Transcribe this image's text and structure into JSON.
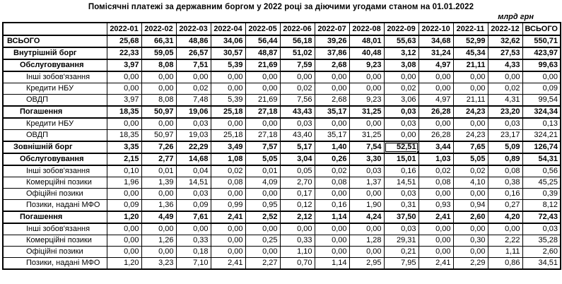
{
  "title": "Помісячні платежі за державним боргом у 2022 році за діючими угодами станом на 01.01.2022",
  "unit_label": "млрд грн",
  "colors": {
    "border": "#000000",
    "text": "#000000",
    "background": "#ffffff"
  },
  "selection": {
    "row_index": 9,
    "value_index": 8,
    "value": "52,51"
  },
  "table": {
    "columns": [
      "2022-01",
      "2022-02",
      "2022-03",
      "2022-04",
      "2022-05",
      "2022-06",
      "2022-07",
      "2022-08",
      "2022-09",
      "2022-10",
      "2022-11",
      "2022-12",
      "ВСЬОГО"
    ],
    "rows": [
      {
        "label": "ВСЬОГО",
        "bold": true,
        "indent": 0,
        "values": [
          "25,68",
          "66,31",
          "48,86",
          "34,06",
          "56,44",
          "56,18",
          "39,26",
          "48,01",
          "55,63",
          "34,68",
          "52,99",
          "32,62",
          "550,71"
        ]
      },
      {
        "label": "Внутрішній борг",
        "bold": true,
        "indent": 1,
        "values": [
          "22,33",
          "59,05",
          "26,57",
          "30,57",
          "48,87",
          "51,02",
          "37,86",
          "40,48",
          "3,12",
          "31,24",
          "45,34",
          "27,53",
          "423,97"
        ]
      },
      {
        "label": "Обслуговування",
        "bold": true,
        "indent": 2,
        "values": [
          "3,97",
          "8,08",
          "7,51",
          "5,39",
          "21,69",
          "7,59",
          "2,68",
          "9,23",
          "3,08",
          "4,97",
          "21,11",
          "4,33",
          "99,63"
        ]
      },
      {
        "label": "Інші зобов'язання",
        "bold": false,
        "indent": 3,
        "values": [
          "0,00",
          "0,00",
          "0,00",
          "0,00",
          "0,00",
          "0,00",
          "0,00",
          "0,00",
          "0,00",
          "0,00",
          "0,00",
          "0,00",
          "0,00"
        ]
      },
      {
        "label": "Кредити НБУ",
        "bold": false,
        "indent": 3,
        "values": [
          "0,00",
          "0,00",
          "0,02",
          "0,00",
          "0,00",
          "0,02",
          "0,00",
          "0,00",
          "0,02",
          "0,00",
          "0,00",
          "0,02",
          "0,09"
        ]
      },
      {
        "label": "ОВДП",
        "bold": false,
        "indent": 3,
        "values": [
          "3,97",
          "8,08",
          "7,48",
          "5,39",
          "21,69",
          "7,56",
          "2,68",
          "9,23",
          "3,06",
          "4,97",
          "21,11",
          "4,31",
          "99,54"
        ]
      },
      {
        "label": "Погашення",
        "bold": true,
        "indent": 2,
        "values": [
          "18,35",
          "50,97",
          "19,06",
          "25,18",
          "27,18",
          "43,43",
          "35,17",
          "31,25",
          "0,03",
          "26,28",
          "24,23",
          "23,20",
          "324,34"
        ]
      },
      {
        "label": "Кредити НБУ",
        "bold": false,
        "indent": 3,
        "values": [
          "0,00",
          "0,00",
          "0,03",
          "0,00",
          "0,00",
          "0,03",
          "0,00",
          "0,00",
          "0,03",
          "0,00",
          "0,00",
          "0,03",
          "0,13"
        ]
      },
      {
        "label": "ОВДП",
        "bold": false,
        "indent": 3,
        "values": [
          "18,35",
          "50,97",
          "19,03",
          "25,18",
          "27,18",
          "43,40",
          "35,17",
          "31,25",
          "0,00",
          "26,28",
          "24,23",
          "23,17",
          "324,21"
        ]
      },
      {
        "label": "Зовнішній борг",
        "bold": true,
        "indent": 1,
        "values": [
          "3,35",
          "7,26",
          "22,29",
          "3,49",
          "7,57",
          "5,17",
          "1,40",
          "7,54",
          "52,51",
          "3,44",
          "7,65",
          "5,09",
          "126,74"
        ]
      },
      {
        "label": "Обслуговування",
        "bold": true,
        "indent": 2,
        "values": [
          "2,15",
          "2,77",
          "14,68",
          "1,08",
          "5,05",
          "3,04",
          "0,26",
          "3,30",
          "15,01",
          "1,03",
          "5,05",
          "0,89",
          "54,31"
        ]
      },
      {
        "label": "Інші зобов'язання",
        "bold": false,
        "indent": 3,
        "values": [
          "0,10",
          "0,01",
          "0,04",
          "0,02",
          "0,01",
          "0,05",
          "0,02",
          "0,03",
          "0,16",
          "0,02",
          "0,02",
          "0,08",
          "0,56"
        ]
      },
      {
        "label": "Комерційні позики",
        "bold": false,
        "indent": 3,
        "values": [
          "1,96",
          "1,39",
          "14,51",
          "0,08",
          "4,09",
          "2,70",
          "0,08",
          "1,37",
          "14,51",
          "0,08",
          "4,10",
          "0,38",
          "45,25"
        ]
      },
      {
        "label": "Офіційні позики",
        "bold": false,
        "indent": 3,
        "values": [
          "0,00",
          "0,00",
          "0,03",
          "0,00",
          "0,00",
          "0,17",
          "0,00",
          "0,00",
          "0,03",
          "0,00",
          "0,00",
          "0,16",
          "0,39"
        ]
      },
      {
        "label": "Позики, надані МФО",
        "bold": false,
        "indent": 3,
        "values": [
          "0,09",
          "1,36",
          "0,09",
          "0,99",
          "0,95",
          "0,12",
          "0,16",
          "1,90",
          "0,31",
          "0,93",
          "0,94",
          "0,27",
          "8,12"
        ]
      },
      {
        "label": "Погашення",
        "bold": true,
        "indent": 2,
        "values": [
          "1,20",
          "4,49",
          "7,61",
          "2,41",
          "2,52",
          "2,12",
          "1,14",
          "4,24",
          "37,50",
          "2,41",
          "2,60",
          "4,20",
          "72,43"
        ]
      },
      {
        "label": "Інші зобов'язання",
        "bold": false,
        "indent": 3,
        "values": [
          "0,00",
          "0,00",
          "0,00",
          "0,00",
          "0,00",
          "0,00",
          "0,00",
          "0,00",
          "0,03",
          "0,00",
          "0,00",
          "0,00",
          "0,03"
        ]
      },
      {
        "label": "Комерційні позики",
        "bold": false,
        "indent": 3,
        "values": [
          "0,00",
          "1,26",
          "0,33",
          "0,00",
          "0,25",
          "0,33",
          "0,00",
          "1,28",
          "29,31",
          "0,00",
          "0,30",
          "2,22",
          "35,28"
        ]
      },
      {
        "label": "Офіційні позики",
        "bold": false,
        "indent": 3,
        "values": [
          "0,00",
          "0,00",
          "0,18",
          "0,00",
          "0,00",
          "1,10",
          "0,00",
          "0,00",
          "0,21",
          "0,00",
          "0,00",
          "1,11",
          "2,60"
        ]
      },
      {
        "label": "Позики, надані МФО",
        "bold": false,
        "indent": 3,
        "values": [
          "1,20",
          "3,23",
          "7,10",
          "2,41",
          "2,27",
          "0,70",
          "1,14",
          "2,95",
          "7,95",
          "2,41",
          "2,29",
          "0,86",
          "34,51"
        ]
      }
    ]
  }
}
